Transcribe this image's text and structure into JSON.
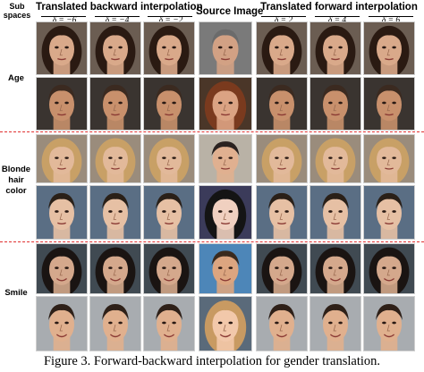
{
  "header": {
    "subspaces": "Sub spaces",
    "backward": "Translated backward interpolation",
    "source": "Source Image",
    "forward": "Translated forward interpolation"
  },
  "deltas": [
    "δ = −6",
    "δ = −4",
    "δ = −2",
    "δ = 2",
    "δ = 4",
    "δ = 6"
  ],
  "row_labels": {
    "age": "Age",
    "blonde": "Blonde hair color",
    "smile": "Smile"
  },
  "caption": "Figure 3. Forward-backward interpolation for gender translation."
}
